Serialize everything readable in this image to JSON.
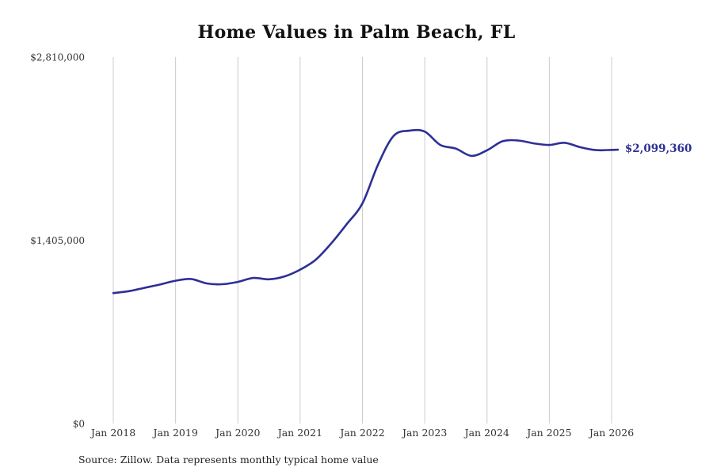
{
  "title": "Home Values in Palm Beach, FL",
  "end_label": "$2,099,360",
  "source_note": "Source: Zillow. Data represents monthly typical home value",
  "colors": {
    "line": "#2d2f96",
    "grid": "#cccccc",
    "tick_text": "#333333",
    "title_text": "#111111",
    "end_label_text": "#2d2f96"
  },
  "chart_data": {
    "type": "line",
    "title": "Home Values in Palm Beach, FL",
    "xlabel": "",
    "ylabel": "",
    "grid": "vertical-only",
    "legend": "none",
    "ylim": [
      0,
      2810000
    ],
    "xlim": [
      2018,
      2026.1
    ],
    "x_ticks": [
      {
        "year": 2018,
        "label": "Jan 2018"
      },
      {
        "year": 2019,
        "label": "Jan 2019"
      },
      {
        "year": 2020,
        "label": "Jan 2020"
      },
      {
        "year": 2021,
        "label": "Jan 2021"
      },
      {
        "year": 2022,
        "label": "Jan 2022"
      },
      {
        "year": 2023,
        "label": "Jan 2023"
      },
      {
        "year": 2024,
        "label": "Jan 2024"
      },
      {
        "year": 2025,
        "label": "Jan 2025"
      },
      {
        "year": 2026,
        "label": "Jan 2026"
      }
    ],
    "y_ticks": [
      {
        "value": 0,
        "label": "$0"
      },
      {
        "value": 1405000,
        "label": "$1,405,000"
      },
      {
        "value": 2810000,
        "label": "$2,810,000"
      }
    ],
    "series": [
      {
        "name": "Monthly typical home value",
        "x": [
          2018.0,
          2018.25,
          2018.5,
          2018.75,
          2019.0,
          2019.25,
          2019.5,
          2019.75,
          2020.0,
          2020.25,
          2020.5,
          2020.75,
          2021.0,
          2021.25,
          2021.5,
          2021.75,
          2022.0,
          2022.25,
          2022.5,
          2022.75,
          2023.0,
          2023.25,
          2023.5,
          2023.75,
          2024.0,
          2024.25,
          2024.5,
          2024.75,
          2025.0,
          2025.25,
          2025.5,
          2025.75,
          2026.0,
          2026.1
        ],
        "values": [
          1000000,
          1015000,
          1040000,
          1066000,
          1095000,
          1108000,
          1074000,
          1068000,
          1086000,
          1116000,
          1106000,
          1128000,
          1180000,
          1256000,
          1382000,
          1530000,
          1688000,
          1985000,
          2205000,
          2245000,
          2238000,
          2136000,
          2108000,
          2052000,
          2095000,
          2164000,
          2170000,
          2148000,
          2136000,
          2152000,
          2118000,
          2096000,
          2098000,
          2099360
        ]
      }
    ],
    "end_value": 2099360,
    "end_value_label": "$2,099,360"
  }
}
